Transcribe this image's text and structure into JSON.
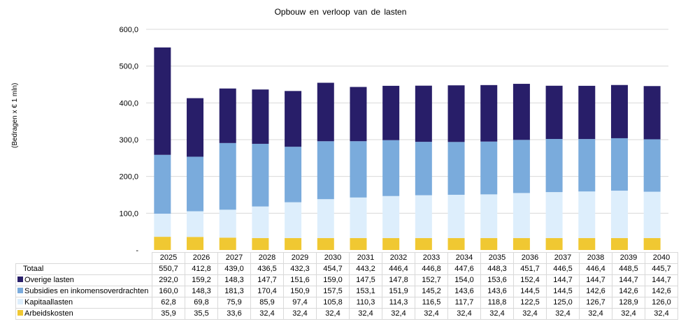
{
  "chart_data": {
    "type": "bar",
    "stacked": true,
    "title": "Opbouw  en verloop  van  de lasten",
    "xlabel": "",
    "ylabel": "(Bedragen x € 1 mln)",
    "ylim": [
      0,
      600
    ],
    "yticks": [
      0,
      100,
      200,
      300,
      400,
      500,
      600
    ],
    "ytick_labels": [
      "-",
      "100,0",
      "200,0",
      "300,0",
      "400,0",
      "500,0",
      "600,0"
    ],
    "grid": true,
    "legend": "data-table-below",
    "categories": [
      "2025",
      "2026",
      "2027",
      "2028",
      "2029",
      "2030",
      "2031",
      "2032",
      "2033",
      "2034",
      "2035",
      "2036",
      "2037",
      "2038",
      "2039",
      "2040"
    ],
    "series": [
      {
        "name": "Arbeidskosten",
        "color": "#f0c832",
        "values": [
          35.9,
          35.5,
          33.6,
          32.4,
          32.4,
          32.4,
          32.4,
          32.4,
          32.4,
          32.4,
          32.4,
          32.4,
          32.4,
          32.4,
          32.4,
          32.4
        ]
      },
      {
        "name": "Kapitaallasten",
        "color": "#ddeefc",
        "values": [
          62.8,
          69.8,
          75.9,
          85.9,
          97.4,
          105.8,
          110.3,
          114.3,
          116.5,
          117.7,
          118.8,
          122.5,
          125.0,
          126.7,
          128.9,
          126.0
        ]
      },
      {
        "name": "Subsidies en inkomensoverdrachten",
        "color": "#7aabdc",
        "values": [
          160.0,
          148.3,
          181.3,
          170.4,
          150.9,
          157.5,
          153.1,
          151.9,
          145.2,
          143.6,
          143.6,
          144.5,
          144.5,
          142.6,
          142.6,
          142.6
        ]
      },
      {
        "name": "Overige lasten",
        "color": "#281e69",
        "values": [
          292.0,
          159.2,
          148.3,
          147.7,
          151.6,
          159.0,
          147.5,
          147.8,
          152.7,
          154.0,
          153.6,
          152.4,
          144.7,
          144.7,
          144.7,
          144.7
        ]
      }
    ],
    "totals": {
      "name": "Totaal",
      "values": [
        550.7,
        412.8,
        439.0,
        436.5,
        432.3,
        454.7,
        443.2,
        446.4,
        446.8,
        447.6,
        448.3,
        451.7,
        446.5,
        446.4,
        448.5,
        445.7
      ]
    }
  },
  "table": {
    "years": [
      "2025",
      "2026",
      "2027",
      "2028",
      "2029",
      "2030",
      "2031",
      "2032",
      "2033",
      "2034",
      "2035",
      "2036",
      "2037",
      "2038",
      "2039",
      "2040"
    ],
    "rows": [
      {
        "label": "Totaal",
        "color": null,
        "cells": [
          "550,7",
          "412,8",
          "439,0",
          "436,5",
          "432,3",
          "454,7",
          "443,2",
          "446,4",
          "446,8",
          "447,6",
          "448,3",
          "451,7",
          "446,5",
          "446,4",
          "448,5",
          "445,7"
        ]
      },
      {
        "label": "Overige lasten",
        "color": "#281e69",
        "cells": [
          "292,0",
          "159,2",
          "148,3",
          "147,7",
          "151,6",
          "159,0",
          "147,5",
          "147,8",
          "152,7",
          "154,0",
          "153,6",
          "152,4",
          "144,7",
          "144,7",
          "144,7",
          "144,7"
        ]
      },
      {
        "label": "Subsidies en inkomensoverdrachten",
        "color": "#7aabdc",
        "cells": [
          "160,0",
          "148,3",
          "181,3",
          "170,4",
          "150,9",
          "157,5",
          "153,1",
          "151,9",
          "145,2",
          "143,6",
          "143,6",
          "144,5",
          "144,5",
          "142,6",
          "142,6",
          "142,6"
        ]
      },
      {
        "label": "Kapitaallasten",
        "color": "#ddeefc",
        "cells": [
          "62,8",
          "69,8",
          "75,9",
          "85,9",
          "97,4",
          "105,8",
          "110,3",
          "114,3",
          "116,5",
          "117,7",
          "118,8",
          "122,5",
          "125,0",
          "126,7",
          "128,9",
          "126,0"
        ]
      },
      {
        "label": "Arbeidskosten",
        "color": "#f0c832",
        "cells": [
          "35,9",
          "35,5",
          "33,6",
          "32,4",
          "32,4",
          "32,4",
          "32,4",
          "32,4",
          "32,4",
          "32,4",
          "32,4",
          "32,4",
          "32,4",
          "32,4",
          "32,4",
          "32,4"
        ]
      }
    ]
  }
}
